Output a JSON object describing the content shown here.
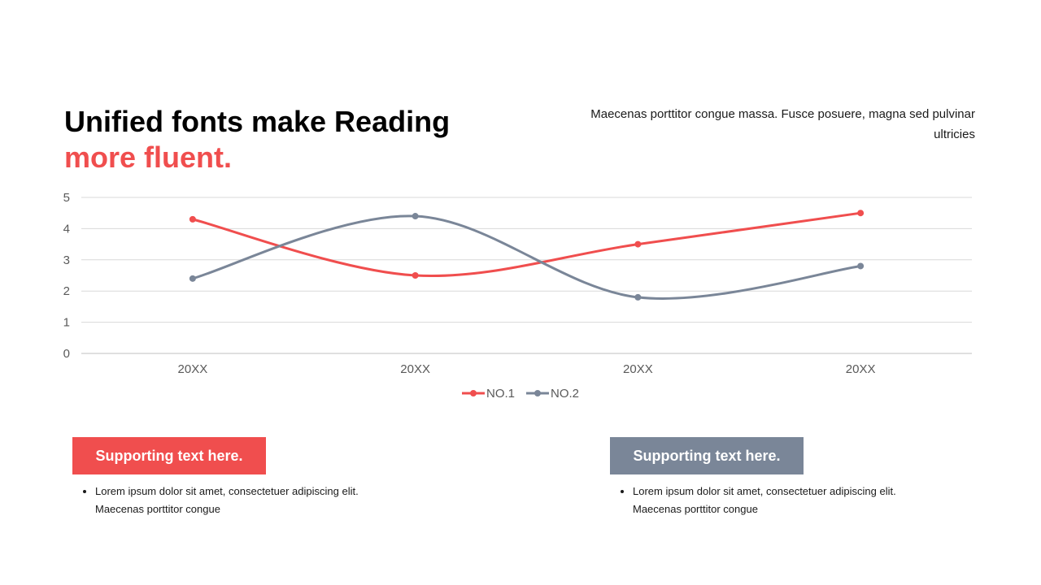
{
  "colors": {
    "accent": "#f04e4e",
    "secondary": "#7a8698",
    "grid": "#d9d9d9",
    "axis_text": "#595959"
  },
  "title": {
    "line1": "Unified fonts make Reading",
    "line2": "more fluent."
  },
  "description": "Maecenas porttitor congue massa. Fusce posuere, magna sed pulvinar ultricies",
  "chart_data": {
    "type": "line",
    "categories": [
      "20XX",
      "20XX",
      "20XX",
      "20XX"
    ],
    "series": [
      {
        "name": "NO.1",
        "values": [
          4.3,
          2.5,
          3.5,
          4.5
        ],
        "color": "#f04e4e"
      },
      {
        "name": "NO.2",
        "values": [
          2.4,
          4.4,
          1.8,
          2.8
        ],
        "color": "#7a8698"
      }
    ],
    "ylim": [
      0,
      5
    ],
    "yticks": [
      0,
      1,
      2,
      3,
      4,
      5
    ],
    "smooth": true,
    "grid": true,
    "legend_position": "bottom"
  },
  "cards": [
    {
      "title": "Supporting text here.",
      "color": "#f04e4e",
      "bullets": [
        "Lorem ipsum dolor sit amet, consectetuer adipiscing elit. Maecenas porttitor congue"
      ]
    },
    {
      "title": "Supporting text here.",
      "color": "#7a8698",
      "bullets": [
        "Lorem ipsum dolor sit amet, consectetuer adipiscing elit. Maecenas porttitor congue"
      ]
    }
  ]
}
